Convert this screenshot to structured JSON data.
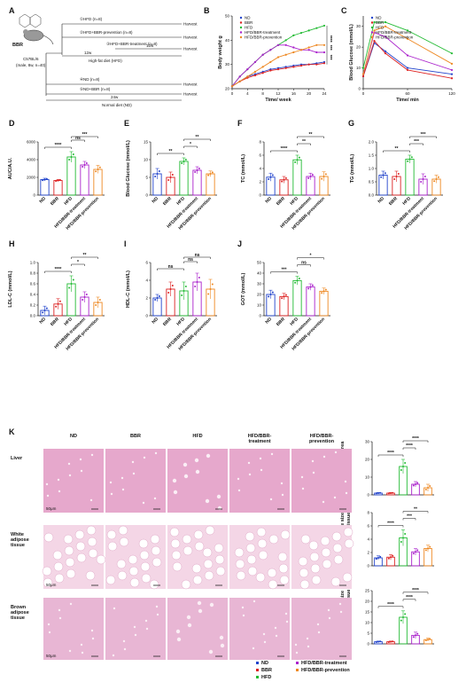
{
  "colors": {
    "ND": "#2244cc",
    "BBR": "#dd2222",
    "HFD": "#22bb33",
    "HFD/BBR-treatment": "#aa22cc",
    "HFD/BBR-prevention": "#ee8822"
  },
  "panel_labels": [
    "A",
    "B",
    "C",
    "D",
    "E",
    "F",
    "G",
    "H",
    "I",
    "J",
    "K"
  ],
  "design": {
    "mouse_label": "BBR",
    "strain_label": "C57BL/6",
    "strain_note": "(male, 8w, n=40)",
    "arms": [
      "①HFD (n=8)",
      "②HFD+BBR-prevention (n=8)",
      "③HFD+BBR-treatment (n=8)",
      "④ND (n=8)",
      "⑤ND+BBR (n=8)"
    ],
    "harvest": "Harvest",
    "hfd_12w": "12w",
    "hfd_12w_b": "12w",
    "hfd_label": "High-fat diet (HFD)",
    "nd_24w": "24w",
    "nd_label": "Normal diet (ND)"
  },
  "groups_legend": [
    "ND",
    "BBR",
    "HFD",
    "HFD/BBR-treatment",
    "HFD/BBR-prevention"
  ],
  "chart_data": [
    {
      "id": "B",
      "type": "line",
      "ylabel": "Body weight g",
      "xlabel": "Time/ week",
      "xlim": [
        0,
        24
      ],
      "ylim": [
        20,
        50
      ],
      "xticks": [
        0,
        4,
        8,
        12,
        16,
        20,
        24
      ],
      "yticks": [
        20,
        30,
        40,
        50
      ],
      "series": [
        {
          "name": "ND",
          "x": [
            0,
            2,
            4,
            6,
            8,
            10,
            12,
            14,
            16,
            18,
            20,
            22,
            24
          ],
          "values": [
            21,
            23,
            25,
            26,
            27,
            28,
            28.5,
            29,
            29.5,
            30,
            30,
            30.5,
            31
          ]
        },
        {
          "name": "BBR",
          "x": [
            0,
            2,
            4,
            6,
            8,
            10,
            12,
            14,
            16,
            18,
            20,
            22,
            24
          ],
          "values": [
            21,
            23,
            24.5,
            25.5,
            26.5,
            27.5,
            28,
            28.5,
            29,
            29.5,
            30,
            30,
            30.5
          ]
        },
        {
          "name": "HFD",
          "x": [
            0,
            2,
            4,
            6,
            8,
            10,
            12,
            14,
            16,
            18,
            20,
            22,
            24
          ],
          "values": [
            21,
            25,
            28,
            31,
            34,
            36,
            38,
            40,
            42,
            43,
            44,
            45,
            46
          ]
        },
        {
          "name": "HFD/BBR-treatment",
          "x": [
            0,
            2,
            4,
            6,
            8,
            10,
            12,
            14,
            16,
            18,
            20,
            22,
            24
          ],
          "values": [
            21,
            25,
            28,
            31,
            34,
            36,
            38,
            38,
            37,
            36,
            36,
            35,
            35
          ]
        },
        {
          "name": "HFD/BBR-prevention",
          "x": [
            0,
            2,
            4,
            6,
            8,
            10,
            12,
            14,
            16,
            18,
            20,
            22,
            24
          ],
          "values": [
            21,
            23,
            25,
            27,
            29,
            31,
            33,
            34,
            35,
            36,
            37,
            38,
            38
          ]
        }
      ],
      "sig": [
        "****",
        "***",
        "***"
      ]
    },
    {
      "id": "C",
      "type": "line",
      "ylabel": "Blood Glucose (mmol/L)",
      "xlabel": "Time/ min",
      "xlim": [
        0,
        120
      ],
      "ylim": [
        0,
        35
      ],
      "xticks": [
        0,
        60,
        120
      ],
      "yticks": [
        0,
        10,
        20,
        30
      ],
      "series": [
        {
          "name": "ND",
          "x": [
            0,
            15,
            30,
            60,
            120
          ],
          "values": [
            6,
            22,
            18,
            10,
            7
          ]
        },
        {
          "name": "BBR",
          "x": [
            0,
            15,
            30,
            60,
            120
          ],
          "values": [
            6,
            23,
            17,
            9,
            5
          ]
        },
        {
          "name": "HFD",
          "x": [
            0,
            15,
            30,
            60,
            120
          ],
          "values": [
            10,
            32,
            32,
            28,
            17
          ]
        },
        {
          "name": "HFD/BBR-treatment",
          "x": [
            0,
            15,
            30,
            60,
            120
          ],
          "values": [
            7,
            27,
            25,
            16,
            9
          ]
        },
        {
          "name": "HFD/BBR-prevention",
          "x": [
            0,
            15,
            30,
            60,
            120
          ],
          "values": [
            7,
            28,
            30,
            24,
            12
          ]
        }
      ]
    },
    {
      "id": "D",
      "type": "bar",
      "ylabel": "AUC/A.U.",
      "ylim": [
        0,
        6000
      ],
      "yticks": [
        0,
        2000,
        4000,
        6000
      ],
      "ytick_labels": [
        "0",
        "2000",
        "4000",
        "6000"
      ],
      "categories": [
        "ND",
        "BBR",
        "HFD",
        "HFD/BBR-treatment",
        "HFD/BBR-prevention"
      ],
      "values": [
        1750,
        1650,
        4300,
        3400,
        2900
      ],
      "errors": [
        150,
        120,
        600,
        400,
        450
      ],
      "sig": [
        {
          "a": 0,
          "b": 2,
          "label": "****"
        },
        {
          "a": 2,
          "b": 3,
          "label": "ns"
        },
        {
          "a": 2,
          "b": 4,
          "label": "***"
        }
      ]
    },
    {
      "id": "E",
      "type": "bar",
      "ylabel": "Blood Glucose (mmol/L)",
      "ylim": [
        0,
        15
      ],
      "yticks": [
        0,
        5,
        10,
        15
      ],
      "ytick_labels": [
        "0",
        "5",
        "10",
        "15"
      ],
      "categories": [
        "ND",
        "BBR",
        "HFD",
        "HFD/BBR-treatment",
        "HFD/BBR-prevention"
      ],
      "values": [
        6,
        5,
        9.5,
        7,
        6
      ],
      "errors": [
        1.5,
        1.5,
        1,
        1,
        0.8
      ],
      "sig": [
        {
          "a": 0,
          "b": 2,
          "label": "**"
        },
        {
          "a": 2,
          "b": 3,
          "label": "*"
        },
        {
          "a": 2,
          "b": 4,
          "label": "**"
        }
      ]
    },
    {
      "id": "F",
      "type": "bar",
      "ylabel": "TC (mmol/L)",
      "ylim": [
        0,
        8
      ],
      "yticks": [
        0,
        2,
        4,
        6,
        8
      ],
      "ytick_labels": [
        "0",
        "2",
        "4",
        "6",
        "8"
      ],
      "categories": [
        "ND",
        "BBR",
        "HFD",
        "HFD/BBR-treatment",
        "HFD/BBR-prevention"
      ],
      "values": [
        2.7,
        2.3,
        5.3,
        2.8,
        2.8
      ],
      "errors": [
        0.6,
        0.5,
        0.7,
        0.5,
        0.7
      ],
      "sig": [
        {
          "a": 0,
          "b": 2,
          "label": "****"
        },
        {
          "a": 2,
          "b": 3,
          "label": "**"
        },
        {
          "a": 2,
          "b": 4,
          "label": "**"
        }
      ]
    },
    {
      "id": "G",
      "type": "bar",
      "ylabel": "TG (mmol/L)",
      "ylim": [
        0,
        2
      ],
      "yticks": [
        0,
        0.5,
        1,
        1.5,
        2
      ],
      "ytick_labels": [
        "0.0",
        "0.5",
        "1.0",
        "1.5",
        "2.0"
      ],
      "categories": [
        "ND",
        "BBR",
        "HFD",
        "HFD/BBR-treatment",
        "HFD/BBR-prevention"
      ],
      "values": [
        0.75,
        0.7,
        1.35,
        0.6,
        0.6
      ],
      "errors": [
        0.15,
        0.2,
        0.15,
        0.2,
        0.15
      ],
      "sig": [
        {
          "a": 0,
          "b": 2,
          "label": "**"
        },
        {
          "a": 2,
          "b": 3,
          "label": "***"
        },
        {
          "a": 2,
          "b": 4,
          "label": "***"
        }
      ]
    },
    {
      "id": "H",
      "type": "bar",
      "ylabel": "LDL-C (mmol/L)",
      "ylim": [
        0,
        1
      ],
      "yticks": [
        0,
        0.2,
        0.4,
        0.6,
        0.8,
        1
      ],
      "ytick_labels": [
        "0.0",
        "0.2",
        "0.4",
        "0.6",
        "0.8",
        "1.0"
      ],
      "categories": [
        "ND",
        "BBR",
        "HFD",
        "HFD/BBR-treatment",
        "HFD/BBR-prevention"
      ],
      "values": [
        0.1,
        0.22,
        0.6,
        0.35,
        0.25
      ],
      "errors": [
        0.08,
        0.1,
        0.15,
        0.1,
        0.1
      ],
      "sig": [
        {
          "a": 0,
          "b": 2,
          "label": "****"
        },
        {
          "a": 2,
          "b": 3,
          "label": "*"
        },
        {
          "a": 2,
          "b": 4,
          "label": "**"
        }
      ]
    },
    {
      "id": "I",
      "type": "bar",
      "ylabel": "HDL-C (mmol/L)",
      "ylim": [
        0,
        6
      ],
      "yticks": [
        0,
        2,
        4,
        6
      ],
      "ytick_labels": [
        "0",
        "2",
        "4",
        "6"
      ],
      "categories": [
        "ND",
        "BBR",
        "HFD",
        "HFD/BBR-treatment",
        "HFD/BBR-prevention"
      ],
      "values": [
        2,
        3,
        2.8,
        3.8,
        3
      ],
      "errors": [
        0.4,
        0.8,
        1,
        1,
        1.1
      ],
      "sig": [
        {
          "a": 0,
          "b": 2,
          "label": "ns"
        },
        {
          "a": 2,
          "b": 3,
          "label": "ns"
        },
        {
          "a": 2,
          "b": 4,
          "label": "ns"
        }
      ]
    },
    {
      "id": "J",
      "type": "bar",
      "ylabel": "GOT (mmol/L)",
      "ylim": [
        0,
        50
      ],
      "yticks": [
        0,
        10,
        20,
        30,
        40,
        50
      ],
      "ytick_labels": [
        "0",
        "10",
        "20",
        "30",
        "40",
        "50"
      ],
      "categories": [
        "ND",
        "BBR",
        "HFD",
        "HFD/BBR-treatment",
        "HFD/BBR-prevention"
      ],
      "values": [
        20,
        18,
        33,
        27,
        23
      ],
      "errors": [
        4,
        3,
        4,
        3,
        3
      ],
      "sig": [
        {
          "a": 0,
          "b": 2,
          "label": "***"
        },
        {
          "a": 2,
          "b": 3,
          "label": "ns"
        },
        {
          "a": 2,
          "b": 4,
          "label": "*"
        }
      ]
    },
    {
      "id": "K1",
      "type": "bar",
      "ylabel": "Relative lipid drop area of liver",
      "ylim": [
        0,
        30
      ],
      "yticks": [
        0,
        10,
        20,
        30
      ],
      "ytick_labels": [
        "0",
        "10",
        "20",
        "30"
      ],
      "categories": [
        "ND",
        "BBR",
        "HFD",
        "HFD/BBR-treatment",
        "HFD/BBR-prevention"
      ],
      "values": [
        1,
        1,
        16,
        6,
        4
      ],
      "errors": [
        0.3,
        0.3,
        4,
        1.5,
        2
      ],
      "sig": [
        {
          "a": 0,
          "b": 2,
          "label": "****"
        },
        {
          "a": 2,
          "b": 3,
          "label": "****"
        },
        {
          "a": 2,
          "b": 4,
          "label": "****"
        }
      ]
    },
    {
      "id": "K2",
      "type": "bar",
      "ylabel": "Relative adipocyte size of white adipose tissue",
      "ylim": [
        0,
        8
      ],
      "yticks": [
        0,
        2,
        4,
        6,
        8
      ],
      "ytick_labels": [
        "0",
        "2",
        "4",
        "6",
        "8"
      ],
      "categories": [
        "ND",
        "BBR",
        "HFD",
        "HFD/BBR-treatment",
        "HFD/BBR-prevention"
      ],
      "values": [
        1.2,
        1.3,
        4.2,
        2.1,
        2.6
      ],
      "errors": [
        0.3,
        0.4,
        1.2,
        0.5,
        0.5
      ],
      "sig": [
        {
          "a": 0,
          "b": 2,
          "label": "****"
        },
        {
          "a": 2,
          "b": 3,
          "label": "***"
        },
        {
          "a": 2,
          "b": 4,
          "label": "**"
        }
      ]
    },
    {
      "id": "K3",
      "type": "bar",
      "ylabel": "Relative adipocyte size of brown adipose tissue",
      "ylim": [
        0,
        25
      ],
      "yticks": [
        0,
        5,
        10,
        15,
        20,
        25
      ],
      "ytick_labels": [
        "0",
        "5",
        "10",
        "15",
        "20",
        "25"
      ],
      "categories": [
        "ND",
        "BBR",
        "HFD",
        "HFD/BBR-treatment",
        "HFD/BBR-prevention"
      ],
      "values": [
        1,
        1,
        12.5,
        4,
        2
      ],
      "errors": [
        0.3,
        0.3,
        3,
        1.5,
        0.7
      ],
      "sig": [
        {
          "a": 0,
          "b": 2,
          "label": "****"
        },
        {
          "a": 2,
          "b": 3,
          "label": "****"
        },
        {
          "a": 2,
          "b": 4,
          "label": "****"
        }
      ]
    }
  ],
  "histology": {
    "columns": [
      "ND",
      "BBR",
      "HFD",
      "HFD/BBR-\ntreatment",
      "HFD/BBR-\nprevention"
    ],
    "rows": [
      "Liver",
      "White\nadipose\ntissue",
      "Brown\nadipose\ntissue"
    ],
    "scale": "50μm"
  }
}
